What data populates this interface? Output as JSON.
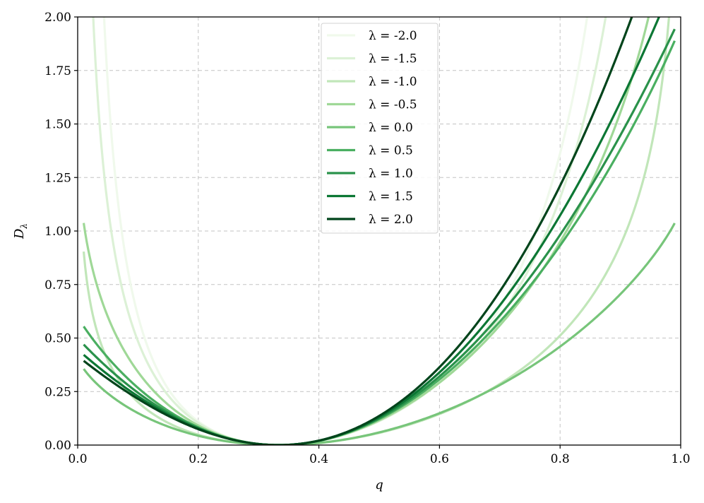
{
  "chart_data": {
    "type": "line",
    "title": "",
    "xlabel": "q",
    "ylabel": "D",
    "ylabel_subscript": "λ",
    "xlim": [
      0.0,
      1.0
    ],
    "ylim": [
      0.0,
      2.0
    ],
    "x_ticks": [
      0.0,
      0.2,
      0.4,
      0.6,
      0.8,
      1.0
    ],
    "x_tick_labels": [
      "0.0",
      "0.2",
      "0.4",
      "0.6",
      "0.8",
      "1.0"
    ],
    "y_ticks": [
      0.0,
      0.25,
      0.5,
      0.75,
      1.0,
      1.25,
      1.5,
      1.75,
      2.0
    ],
    "y_tick_labels": [
      "0.00",
      "0.25",
      "0.50",
      "0.75",
      "1.00",
      "1.25",
      "1.50",
      "1.75",
      "2.00"
    ],
    "grid": true,
    "legend_position": "top-center",
    "q_range": [
      0.01,
      0.99
    ],
    "q0": 0.333,
    "series": [
      {
        "name": "λ = -2.0",
        "lambda": -2.0,
        "color": "#f0f9ec"
      },
      {
        "name": "λ = -1.5",
        "lambda": -1.5,
        "color": "#dcf1d6"
      },
      {
        "name": "λ = -1.0",
        "lambda": -1.0,
        "color": "#c1e6b9"
      },
      {
        "name": "λ = -0.5",
        "lambda": -0.5,
        "color": "#9fd897"
      },
      {
        "name": "λ = 0.0",
        "lambda": 0.0,
        "color": "#77c57a"
      },
      {
        "name": "λ = 0.5",
        "lambda": 0.5,
        "color": "#4aaf61"
      },
      {
        "name": "λ = 1.0",
        "lambda": 1.0,
        "color": "#2a924b"
      },
      {
        "name": "λ = 1.5",
        "lambda": 1.5,
        "color": "#0c7734"
      },
      {
        "name": "λ = 2.0",
        "lambda": 2.0,
        "color": "#00441b"
      }
    ]
  }
}
